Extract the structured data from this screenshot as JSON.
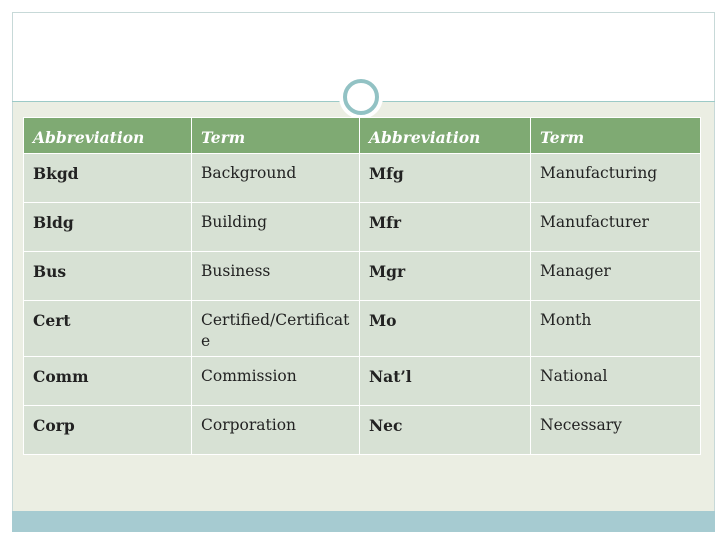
{
  "table": {
    "headers": [
      "Abbreviation",
      "Term",
      "Abbreviation",
      "Term"
    ],
    "rows": [
      [
        "Bkgd",
        "Background",
        "Mfg",
        "Manufacturing"
      ],
      [
        "Bldg",
        "Building",
        "Mfr",
        "Manufacturer"
      ],
      [
        "Bus",
        "Business",
        "Mgr",
        "Manager"
      ],
      [
        "Cert",
        "Certified/Certificate",
        "Mo",
        "Month"
      ],
      [
        "Comm",
        "Commission",
        "Nat’l",
        "National"
      ],
      [
        "Corp",
        "Corporation",
        "Nec",
        "Necessary"
      ]
    ]
  },
  "colors": {
    "header_bg": "#7faa73",
    "row_bg": "#d7e1d4",
    "footer_bar": "#a6cbd1",
    "slide_bg": "#ebeee3"
  }
}
